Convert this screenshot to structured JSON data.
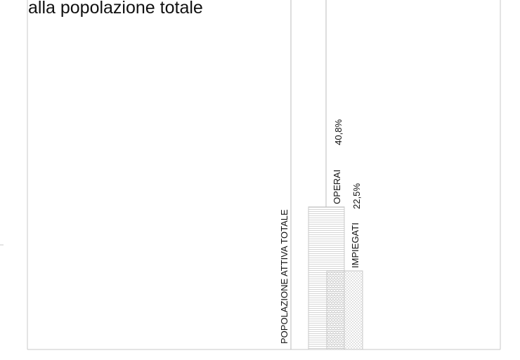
{
  "title": "alla popolazione totale",
  "chart_data": {
    "type": "bar",
    "title": "alla popolazione totale",
    "reference_label": "POPOLAZIONE ATTIVA TOTALE",
    "categories": [
      "OPERAI",
      "IMPIEGATI"
    ],
    "values": [
      40.8,
      22.5
    ],
    "value_labels": [
      "40,8%",
      "22,5%"
    ],
    "unit": "%",
    "ylim": [
      0,
      100
    ],
    "grid": false,
    "legend": "none",
    "colors": {
      "frame": "#c8c8c8",
      "hatch": "#b9b9b9",
      "text": "#111111"
    }
  }
}
